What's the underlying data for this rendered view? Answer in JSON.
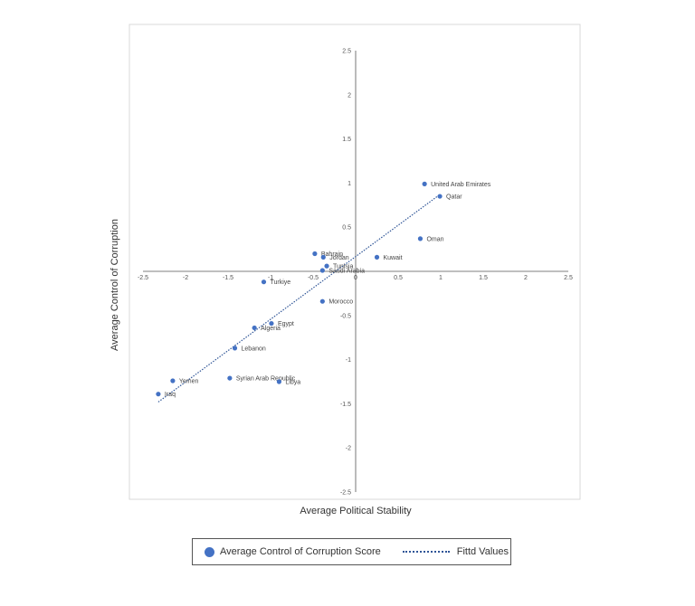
{
  "chart_data": {
    "type": "scatter",
    "title": "",
    "xlabel": "Average Political Stability",
    "ylabel": "Average Control of Corruption",
    "xlim": [
      -2.5,
      2.5
    ],
    "ylim": [
      -2.5,
      2.5
    ],
    "xticks": [
      "-2.5",
      "-2",
      "-1.5",
      "-1",
      "-0.5",
      "0",
      "0.5",
      "1",
      "1.5",
      "2",
      "2.5"
    ],
    "yticks": [
      "2.5",
      "2",
      "1.5",
      "1",
      "0.5",
      "-0.5",
      "-1",
      "-1.5",
      "-2",
      "-2.5"
    ],
    "series": [
      {
        "name": "Average Control of Corruption Score",
        "color": "#4472C4",
        "points": [
          {
            "label": "United Arab Emirates",
            "x": 0.81,
            "y": 0.99
          },
          {
            "label": "Qatar",
            "x": 0.99,
            "y": 0.85
          },
          {
            "label": "Oman",
            "x": 0.76,
            "y": 0.37
          },
          {
            "label": "Kuwait",
            "x": 0.25,
            "y": 0.16
          },
          {
            "label": "Bahrain",
            "x": -0.48,
            "y": 0.2
          },
          {
            "label": "Jordan",
            "x": -0.38,
            "y": 0.16
          },
          {
            "label": "Tunisia",
            "x": -0.34,
            "y": 0.06
          },
          {
            "label": "Saudi Arabia",
            "x": -0.39,
            "y": 0.01
          },
          {
            "label": "Turkiye",
            "x": -1.08,
            "y": -0.12
          },
          {
            "label": "Morocco",
            "x": -0.39,
            "y": -0.34
          },
          {
            "label": "Egypt",
            "x": -0.99,
            "y": -0.59
          },
          {
            "label": "Algeria",
            "x": -1.19,
            "y": -0.64
          },
          {
            "label": "Lebanon",
            "x": -1.42,
            "y": -0.87
          },
          {
            "label": "Syrian Arab Republic",
            "x": -1.48,
            "y": -1.21
          },
          {
            "label": "Libya",
            "x": -0.9,
            "y": -1.25
          },
          {
            "label": "Yemen",
            "x": -2.15,
            "y": -1.24
          },
          {
            "label": "Iraq",
            "x": -2.32,
            "y": -1.39
          }
        ]
      }
    ],
    "fitted_line": {
      "name": "Fittd Values",
      "color": "#2F5597",
      "x": [
        -2.32,
        0.99
      ],
      "y": [
        -1.48,
        0.87
      ]
    }
  },
  "legend": {
    "scatter_label": "Average Control of Corruption Score",
    "line_label": "Fittd Values"
  }
}
